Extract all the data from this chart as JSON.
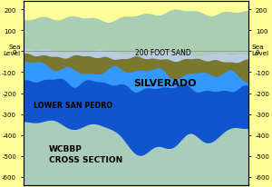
{
  "background_color": "#FFFF99",
  "plot_bg_color": "#FFFF99",
  "title": "WCBBP\nCROSS SECTION",
  "label_silverado": "SILVERADO",
  "label_200foot": "200 FOOT SAND",
  "label_lsp": "LOWER SAN PEDRO",
  "sea_level_label_left": "Sea\nLevel",
  "sea_level_label_right": "Sea\nLevel",
  "left_yticks": [
    200,
    100,
    0,
    -100,
    -200,
    -300,
    -400,
    -500,
    -600
  ],
  "right_yticks": [
    200,
    100,
    0,
    -100,
    -200,
    -300,
    -400,
    -500,
    -600
  ],
  "ylim": [
    -640,
    240
  ],
  "xlim": [
    0,
    100
  ],
  "colors": {
    "yellow_bg": "#FFFF99",
    "light_green_top": "#AACFB0",
    "pale_blue_sand": "#B8CCE0",
    "olive_brown": "#7A7830",
    "bright_blue_silverado": "#3399FF",
    "deep_blue_lsp": "#1155CC",
    "pale_teal_bottom": "#AACCBB",
    "sea_level_line": "#999999"
  }
}
